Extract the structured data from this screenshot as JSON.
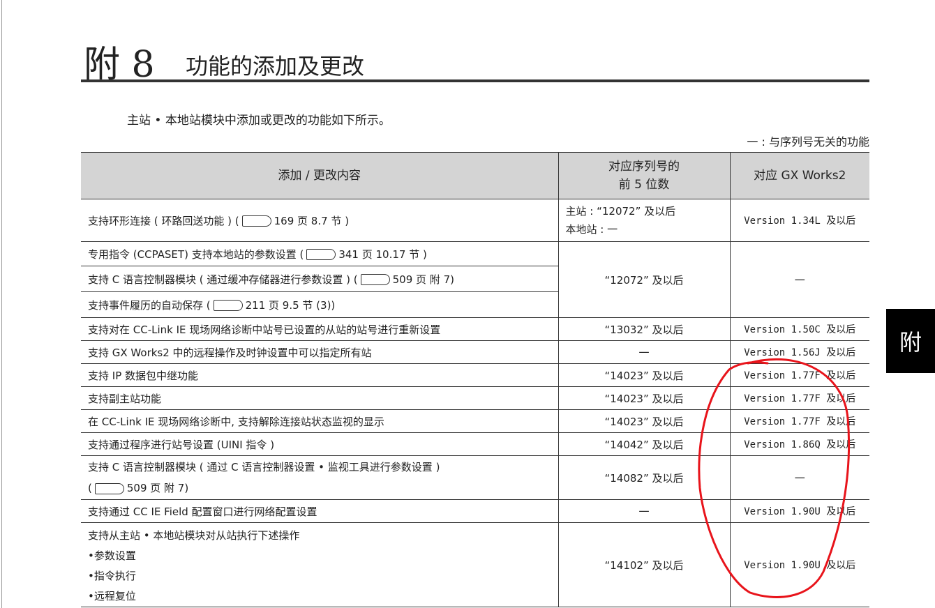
{
  "title": {
    "number": "附 8",
    "text": "功能的添加及更改"
  },
  "intro": "主站 • 本地站模块中添加或更改的功能如下所示。",
  "note": "一 : 与序列号无关的功能",
  "side_tab": "附",
  "annotation_color": "#e8141b",
  "table": {
    "headers": [
      "添加 / 更改内容",
      "对应序列号的",
      "前 5 位数",
      "对应 GX Works2"
    ],
    "rows": [
      {
        "content": "支持环形连接 ( 环路回送功能 ) (",
        "ref": "169 页 8.7 节 )",
        "serial": "主站 : “12072” 及以后",
        "serial2": "本地站 : 一",
        "gx": "Version 1.34L 及以后"
      },
      {
        "content": "专用指令 (CCPASET) 支持本地站的参数设置 (",
        "ref": "341 页 10.17 节 )"
      },
      {
        "content": "支持 C 语言控制器模块 ( 通过缓冲存储器进行参数设置 ) (",
        "ref": "509 页 附 7)"
      },
      {
        "content": "支持事件履历的自动保存 (",
        "ref": "211 页 9.5 节 (3))"
      },
      {
        "content": "支持对在 CC-Link IE 现场网络诊断中站号已设置的从站的站号进行重新设置",
        "serial": "“13032” 及以后",
        "gx": "Version 1.50C 及以后"
      },
      {
        "content": "支持 GX Works2 中的远程操作及时钟设置中可以指定所有站",
        "serial": "一",
        "gx": "Version 1.56J 及以后"
      },
      {
        "content": "支持 IP 数据包中继功能",
        "serial": "“14023” 及以后",
        "gx": "Version 1.77F 及以后"
      },
      {
        "content": "支持副主站功能",
        "serial": "“14023” 及以后",
        "gx": "Version 1.77F 及以后"
      },
      {
        "content": "在 CC-Link IE 现场网络诊断中, 支持解除连接站状态监视的显示",
        "serial": "“14023” 及以后",
        "gx": "Version 1.77F 及以后"
      },
      {
        "content": "支持通过程序进行站号设置 (UINI 指令 )",
        "serial": "“14042” 及以后",
        "gx": "Version 1.86Q 及以后"
      },
      {
        "content": "支持 C 语言控制器模块 ( 通过 C 语言控制器设置 • 监视工具进行参数设置 )",
        "content2": "(",
        "ref": "509 页 附 7)",
        "serial": "“14082” 及以后",
        "gx": "一"
      },
      {
        "content": "支持通过 CC IE Field 配置窗口进行网络配置设置",
        "serial": "一",
        "gx": "Version 1.90U 及以后"
      },
      {
        "content": "支持从主站 • 本地站模块对从站执行下述操作",
        "bullets": [
          "•参数设置",
          "•指令执行",
          "•远程复位"
        ],
        "serial": "“14102” 及以后",
        "gx": "Version 1.90U 及以后"
      }
    ],
    "group_serial": "“12072” 及以后",
    "group_gx": "一"
  }
}
